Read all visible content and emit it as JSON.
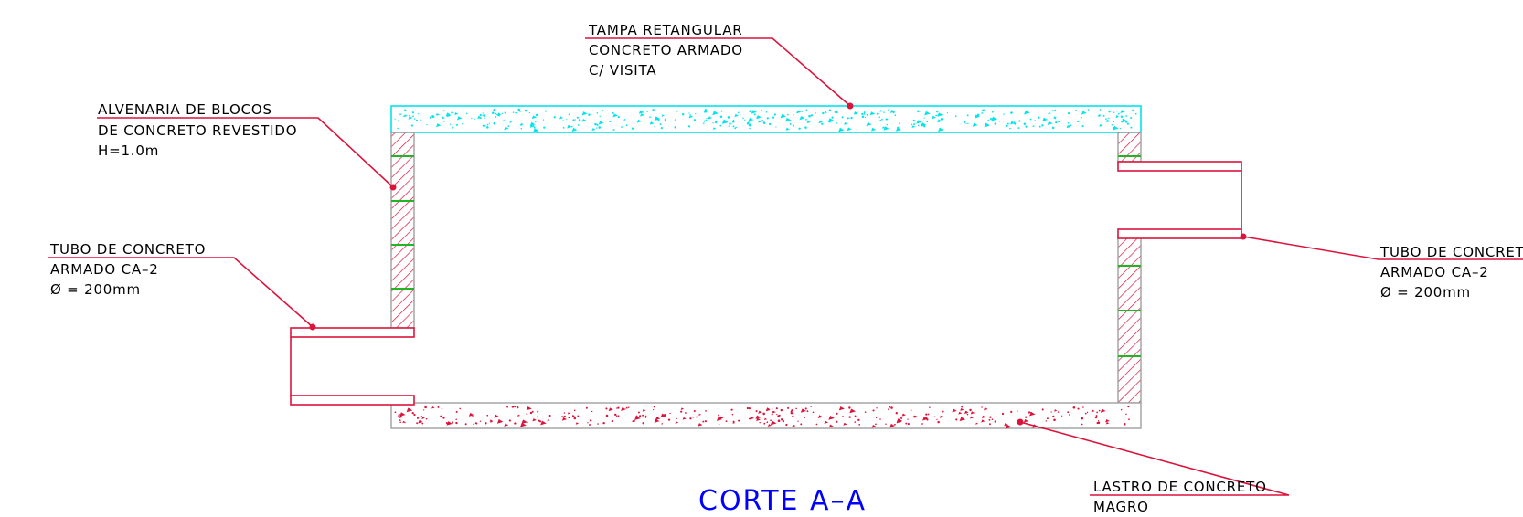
{
  "title": "CORTE A–A",
  "labels": {
    "lid": [
      "TAMPA RETANGULAR",
      "CONCRETO ARMADO",
      "C/ VISITA"
    ],
    "masonry": [
      "ALVENARIA DE BLOCOS",
      "DE CONCRETO REVESTIDO",
      "H=1.0m"
    ],
    "pipe_left": [
      "TUBO DE CONCRETO",
      "ARMADO CA–2",
      "Ø = 200mm"
    ],
    "pipe_right": [
      "TUBO DE CONCRETO",
      "ARMADO CA–2",
      "Ø = 200mm"
    ],
    "base": [
      "LASTRO DE CONCRETO",
      "MAGRO"
    ]
  },
  "colors": {
    "leader": "#dc143c",
    "lid": "#00e5ee",
    "masonry_hatch": "#dc143c",
    "rungs": "#22b522",
    "base_speckle": "#dc143c",
    "title": "#0000ff",
    "outline": "#a0a0a0"
  }
}
